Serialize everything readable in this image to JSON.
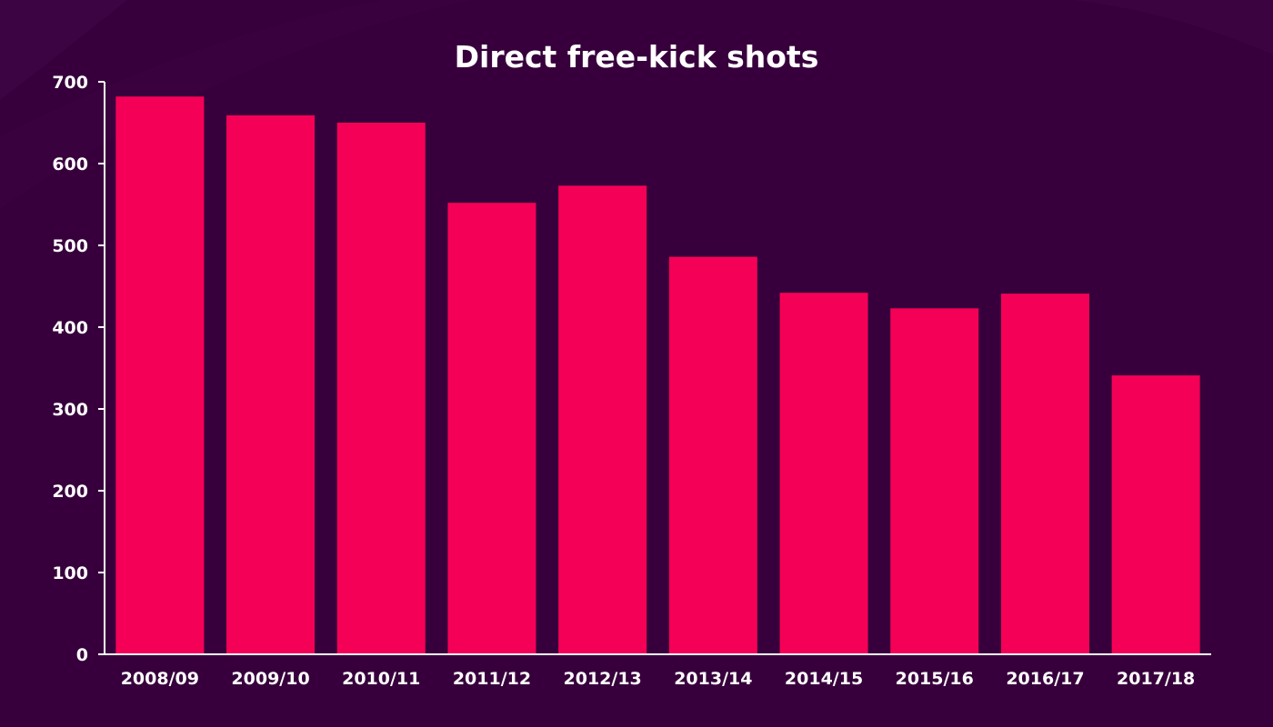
{
  "colors": {
    "background": "#37003c",
    "bar": "#f50057",
    "text": "#ffffff",
    "swoosh": "#3d0442"
  },
  "chart_data": {
    "type": "bar",
    "title": "Direct free-kick shots",
    "xlabel": "",
    "ylabel": "",
    "categories": [
      "2008/09",
      "2009/10",
      "2010/11",
      "2011/12",
      "2012/13",
      "2013/14",
      "2014/15",
      "2015/16",
      "2016/17",
      "2017/18"
    ],
    "values": [
      682,
      659,
      650,
      552,
      573,
      486,
      442,
      423,
      441,
      341
    ],
    "ylim": [
      0,
      700
    ],
    "yticks": [
      0,
      100,
      200,
      300,
      400,
      500,
      600,
      700
    ],
    "grid": false,
    "legend": "none"
  }
}
